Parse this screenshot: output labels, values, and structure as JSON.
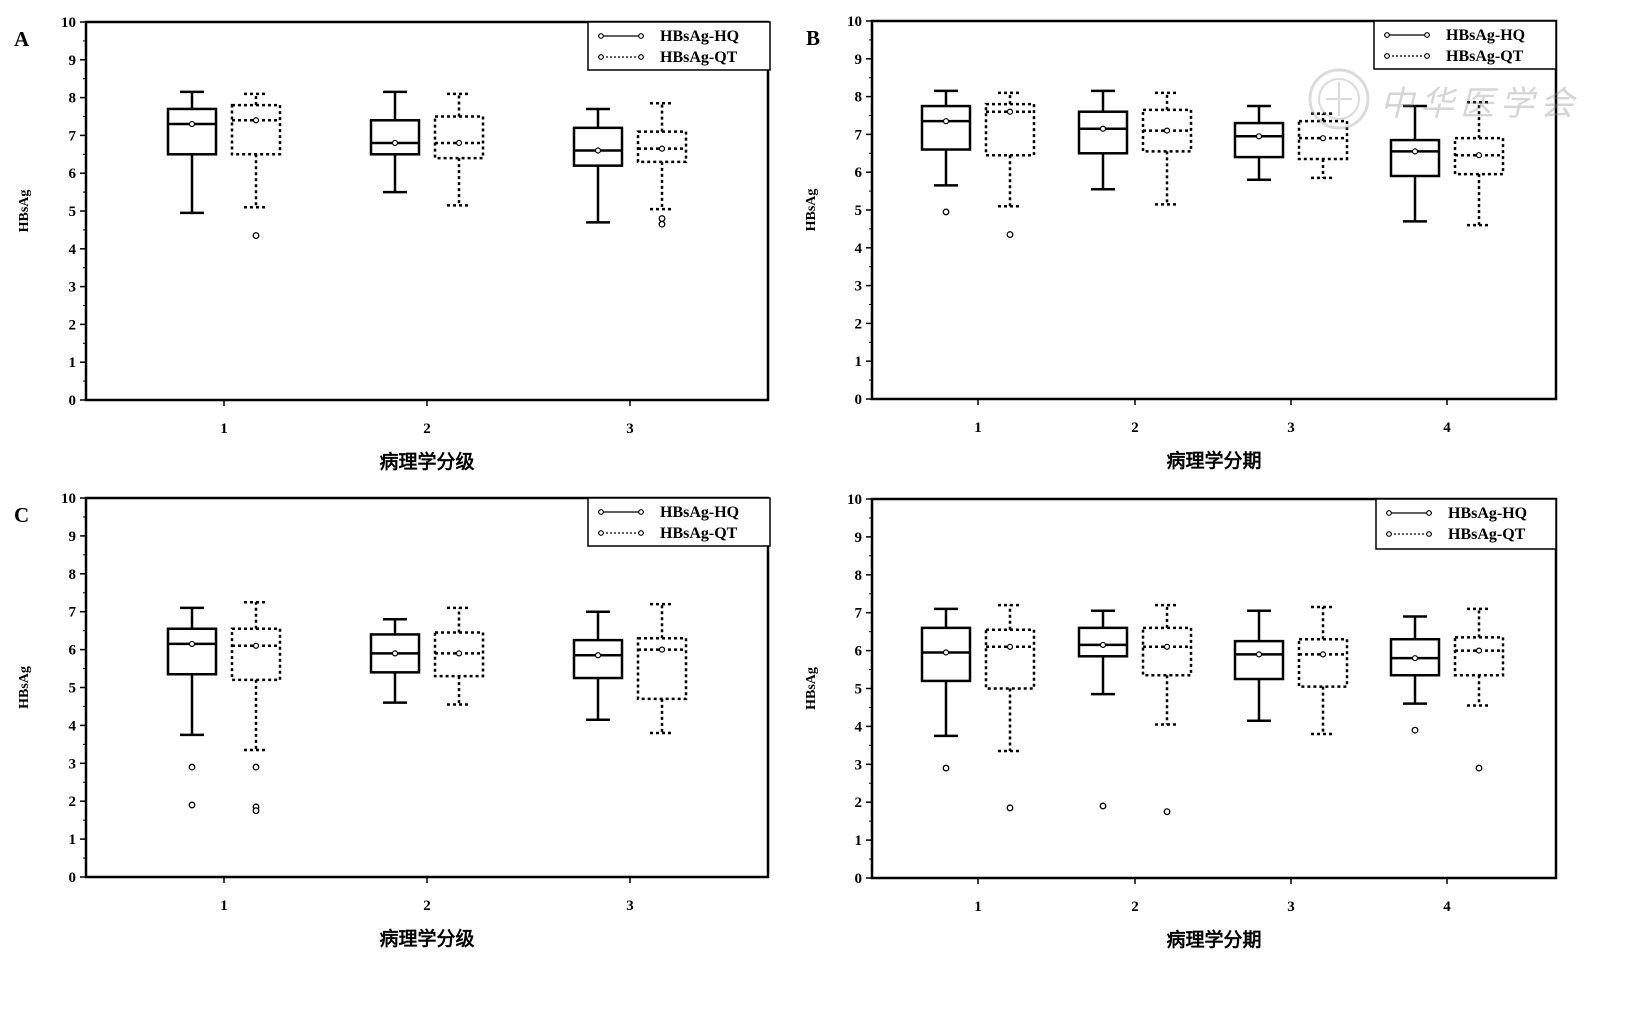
{
  "watermark": {
    "text": "中华医学会"
  },
  "legend_line_label_hq": "HBsAg-HQ",
  "legend_line_label_qt": "HBsAg-QT",
  "chart_data": [
    {
      "panel": "A",
      "type": "box",
      "xlabel": "病理学分级",
      "ylabel": "HBsAg",
      "ylim": [
        0,
        10
      ],
      "yticks": [
        0,
        1,
        2,
        3,
        4,
        5,
        6,
        7,
        8,
        9,
        10
      ],
      "categories": [
        "1",
        "2",
        "3"
      ],
      "legend_position": "top-right",
      "series": [
        {
          "name": "HBsAg-HQ",
          "style": "solid",
          "boxes": [
            {
              "whisker_low": 4.95,
              "q1": 6.5,
              "median": 7.3,
              "q3": 7.7,
              "whisker_high": 8.15,
              "mean": 7.3,
              "outliers": []
            },
            {
              "whisker_low": 5.5,
              "q1": 6.5,
              "median": 6.8,
              "q3": 7.4,
              "whisker_high": 8.15,
              "mean": 6.8,
              "outliers": []
            },
            {
              "whisker_low": 4.7,
              "q1": 6.2,
              "median": 6.6,
              "q3": 7.2,
              "whisker_high": 7.7,
              "mean": 6.6,
              "outliers": []
            }
          ]
        },
        {
          "name": "HBsAg-QT",
          "style": "dotted",
          "boxes": [
            {
              "whisker_low": 5.1,
              "q1": 6.5,
              "median": 7.4,
              "q3": 7.8,
              "whisker_high": 8.1,
              "mean": 7.4,
              "outliers": [
                4.35
              ]
            },
            {
              "whisker_low": 5.15,
              "q1": 6.4,
              "median": 6.8,
              "q3": 7.5,
              "whisker_high": 8.1,
              "mean": 6.8,
              "outliers": []
            },
            {
              "whisker_low": 5.05,
              "q1": 6.3,
              "median": 6.65,
              "q3": 7.1,
              "whisker_high": 7.85,
              "mean": 6.65,
              "outliers": [
                4.65,
                4.8
              ]
            }
          ]
        }
      ]
    },
    {
      "panel": "B",
      "type": "box",
      "xlabel": "病理学分期",
      "ylabel": "HBsAg",
      "ylim": [
        0,
        10
      ],
      "yticks": [
        0,
        1,
        2,
        3,
        4,
        5,
        6,
        7,
        8,
        9,
        10
      ],
      "categories": [
        "1",
        "2",
        "3",
        "4"
      ],
      "legend_position": "top-right",
      "series": [
        {
          "name": "HBsAg-HQ",
          "style": "solid",
          "boxes": [
            {
              "whisker_low": 5.65,
              "q1": 6.6,
              "median": 7.35,
              "q3": 7.75,
              "whisker_high": 8.15,
              "mean": 7.35,
              "outliers": [
                4.95
              ]
            },
            {
              "whisker_low": 5.55,
              "q1": 6.5,
              "median": 7.15,
              "q3": 7.6,
              "whisker_high": 8.15,
              "mean": 7.15,
              "outliers": []
            },
            {
              "whisker_low": 5.8,
              "q1": 6.4,
              "median": 6.95,
              "q3": 7.3,
              "whisker_high": 7.75,
              "mean": 6.95,
              "outliers": []
            },
            {
              "whisker_low": 4.7,
              "q1": 5.9,
              "median": 6.55,
              "q3": 6.85,
              "whisker_high": 7.75,
              "mean": 6.55,
              "outliers": []
            }
          ]
        },
        {
          "name": "HBsAg-QT",
          "style": "dotted",
          "boxes": [
            {
              "whisker_low": 5.1,
              "q1": 6.45,
              "median": 7.6,
              "q3": 7.8,
              "whisker_high": 8.1,
              "mean": 7.6,
              "outliers": [
                4.35
              ]
            },
            {
              "whisker_low": 5.15,
              "q1": 6.55,
              "median": 7.1,
              "q3": 7.65,
              "whisker_high": 8.1,
              "mean": 7.1,
              "outliers": []
            },
            {
              "whisker_low": 5.85,
              "q1": 6.35,
              "median": 6.9,
              "q3": 7.35,
              "whisker_high": 7.55,
              "mean": 6.9,
              "outliers": []
            },
            {
              "whisker_low": 4.6,
              "q1": 5.95,
              "median": 6.45,
              "q3": 6.9,
              "whisker_high": 7.85,
              "mean": 6.45,
              "outliers": []
            }
          ]
        }
      ]
    },
    {
      "panel": "C",
      "type": "box",
      "xlabel": "病理学分级",
      "ylabel": "HBsAg",
      "ylim": [
        0,
        10
      ],
      "yticks": [
        0,
        1,
        2,
        3,
        4,
        5,
        6,
        7,
        8,
        9,
        10
      ],
      "categories": [
        "1",
        "2",
        "3"
      ],
      "legend_position": "top-right",
      "series": [
        {
          "name": "HBsAg-HQ",
          "style": "solid",
          "boxes": [
            {
              "whisker_low": 3.75,
              "q1": 5.35,
              "median": 6.15,
              "q3": 6.55,
              "whisker_high": 7.1,
              "mean": 6.15,
              "outliers": [
                2.9,
                1.9
              ]
            },
            {
              "whisker_low": 4.6,
              "q1": 5.4,
              "median": 5.9,
              "q3": 6.4,
              "whisker_high": 6.8,
              "mean": 5.9,
              "outliers": []
            },
            {
              "whisker_low": 4.15,
              "q1": 5.25,
              "median": 5.85,
              "q3": 6.25,
              "whisker_high": 7.0,
              "mean": 5.85,
              "outliers": []
            }
          ]
        },
        {
          "name": "HBsAg-QT",
          "style": "dotted",
          "boxes": [
            {
              "whisker_low": 3.35,
              "q1": 5.2,
              "median": 6.1,
              "q3": 6.55,
              "whisker_high": 7.25,
              "mean": 6.1,
              "outliers": [
                2.9,
                1.85,
                1.75
              ]
            },
            {
              "whisker_low": 4.55,
              "q1": 5.3,
              "median": 5.9,
              "q3": 6.45,
              "whisker_high": 7.1,
              "mean": 5.9,
              "outliers": []
            },
            {
              "whisker_low": 3.8,
              "q1": 4.7,
              "median": 6.0,
              "q3": 6.3,
              "whisker_high": 7.2,
              "mean": 6.0,
              "outliers": []
            }
          ]
        }
      ]
    },
    {
      "panel": "",
      "type": "box",
      "xlabel": "病理学分期",
      "ylabel": "HBsAg",
      "ylim": [
        0,
        10
      ],
      "yticks": [
        0,
        1,
        2,
        3,
        4,
        5,
        6,
        7,
        8,
        9,
        10
      ],
      "categories": [
        "1",
        "2",
        "3",
        "4"
      ],
      "legend_position": "top-right",
      "series": [
        {
          "name": "HBsAg-HQ",
          "style": "solid",
          "boxes": [
            {
              "whisker_low": 3.75,
              "q1": 5.2,
              "median": 5.95,
              "q3": 6.6,
              "whisker_high": 7.1,
              "mean": 5.95,
              "outliers": [
                2.9
              ]
            },
            {
              "whisker_low": 4.85,
              "q1": 5.85,
              "median": 6.15,
              "q3": 6.6,
              "whisker_high": 7.05,
              "mean": 6.15,
              "outliers": [
                1.9
              ]
            },
            {
              "whisker_low": 4.15,
              "q1": 5.25,
              "median": 5.9,
              "q3": 6.25,
              "whisker_high": 7.05,
              "mean": 5.9,
              "outliers": []
            },
            {
              "whisker_low": 4.6,
              "q1": 5.35,
              "median": 5.8,
              "q3": 6.3,
              "whisker_high": 6.9,
              "mean": 5.8,
              "outliers": [
                3.9
              ]
            }
          ]
        },
        {
          "name": "HBsAg-QT",
          "style": "dotted",
          "boxes": [
            {
              "whisker_low": 3.35,
              "q1": 5.0,
              "median": 6.1,
              "q3": 6.55,
              "whisker_high": 7.2,
              "mean": 6.1,
              "outliers": [
                1.85
              ]
            },
            {
              "whisker_low": 4.05,
              "q1": 5.35,
              "median": 6.1,
              "q3": 6.6,
              "whisker_high": 7.2,
              "mean": 6.1,
              "outliers": [
                1.75
              ]
            },
            {
              "whisker_low": 3.8,
              "q1": 5.05,
              "median": 5.9,
              "q3": 6.3,
              "whisker_high": 7.15,
              "mean": 5.9,
              "outliers": []
            },
            {
              "whisker_low": 4.55,
              "q1": 5.35,
              "median": 6.0,
              "q3": 6.35,
              "whisker_high": 7.1,
              "mean": 6.0,
              "outliers": [
                2.9
              ]
            }
          ]
        }
      ]
    }
  ]
}
